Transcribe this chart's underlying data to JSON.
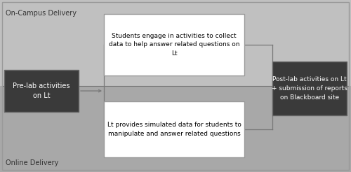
{
  "fig_width": 5.0,
  "fig_height": 2.46,
  "dpi": 100,
  "bg_light": "#c0c0c0",
  "bg_dark": "#a8a8a8",
  "label_top": "On-Campus Delivery",
  "label_bottom": "Online Delivery",
  "pre_lab_text": "Pre-lab activities\non Lt",
  "pre_lab_bg": "#3a3a3a",
  "pre_lab_text_color": "#ffffff",
  "post_lab_text": "Post-lab activities on Lt\n+ submission of reports\non Blackboard site",
  "post_lab_bg": "#3a3a3a",
  "post_lab_text_color": "#ffffff",
  "upper_box_text": "Students engage in activities to collect\ndata to help answer related questions on\nLt",
  "upper_box_bg": "#ffffff",
  "upper_box_text_color": "#000000",
  "lower_box_text": "Lt provides simulated data for students to\nmanipulate and answer related questions",
  "lower_box_bg": "#ffffff",
  "lower_box_text_color": "#000000",
  "line_color": "#777777",
  "border_color": "#999999",
  "text_color": "#333333"
}
